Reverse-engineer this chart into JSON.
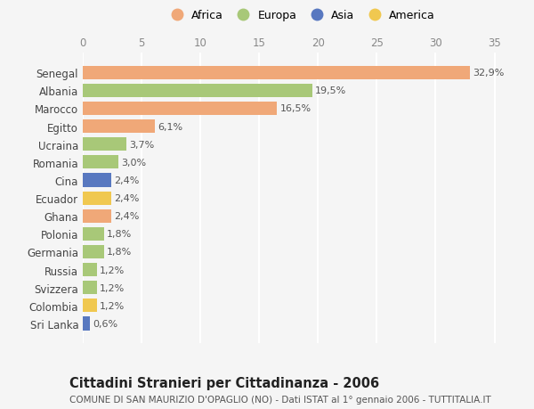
{
  "countries": [
    "Senegal",
    "Albania",
    "Marocco",
    "Egitto",
    "Ucraina",
    "Romania",
    "Cina",
    "Ecuador",
    "Ghana",
    "Polonia",
    "Germania",
    "Russia",
    "Svizzera",
    "Colombia",
    "Sri Lanka"
  ],
  "values": [
    32.9,
    19.5,
    16.5,
    6.1,
    3.7,
    3.0,
    2.4,
    2.4,
    2.4,
    1.8,
    1.8,
    1.2,
    1.2,
    1.2,
    0.6
  ],
  "labels": [
    "32,9%",
    "19,5%",
    "16,5%",
    "6,1%",
    "3,7%",
    "3,0%",
    "2,4%",
    "2,4%",
    "2,4%",
    "1,8%",
    "1,8%",
    "1,2%",
    "1,2%",
    "1,2%",
    "0,6%"
  ],
  "continents": [
    "Africa",
    "Europa",
    "Africa",
    "Africa",
    "Europa",
    "Europa",
    "Asia",
    "America",
    "Africa",
    "Europa",
    "Europa",
    "Europa",
    "Europa",
    "America",
    "Asia"
  ],
  "continent_colors": {
    "Africa": "#F0A878",
    "Europa": "#A8C878",
    "Asia": "#5878C0",
    "America": "#F0C850"
  },
  "legend_order": [
    "Africa",
    "Europa",
    "Asia",
    "America"
  ],
  "title_bold": "Cittadini Stranieri per Cittadinanza - 2006",
  "subtitle": "COMUNE DI SAN MAURIZIO D'OPAGLIO (NO) - Dati ISTAT al 1° gennaio 2006 - TUTTITALIA.IT",
  "xlim": [
    0,
    37
  ],
  "xticks": [
    0,
    5,
    10,
    15,
    20,
    25,
    30,
    35
  ],
  "background_color": "#f5f5f5",
  "bar_height": 0.75,
  "label_fontsize": 8,
  "tick_fontsize": 8.5,
  "title_fontsize": 10.5,
  "subtitle_fontsize": 7.5
}
